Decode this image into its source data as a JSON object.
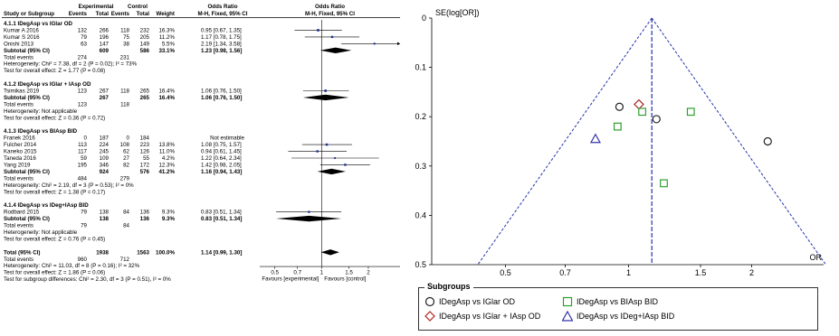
{
  "chart_data": [
    {
      "type": "forest",
      "headers": {
        "study": "Study or Subgroup",
        "exp": "Experimental",
        "ctrl": "Control",
        "events": "Events",
        "total": "Total",
        "weight": "Weight",
        "or_text": "Odds Ratio",
        "or_text_sub": "M-H, Fixed, 95% CI",
        "or_plot": "Odds Ratio",
        "or_plot_sub": "M-H, Fixed, 95% CI"
      },
      "rows": [
        {
          "kind": "group",
          "label": "4.1.1 IDegAsp vs IGlar OD"
        },
        {
          "kind": "study",
          "label": "Kumar A 2016",
          "e_ev": "132",
          "e_tot": "266",
          "c_ev": "118",
          "c_tot": "232",
          "weight": "16.3%",
          "ci": "0.95 [0.67, 1.35]",
          "or": 0.95,
          "lo": 0.67,
          "hi": 1.35,
          "w": 16.3
        },
        {
          "kind": "study",
          "label": "Kumar S 2016",
          "e_ev": "79",
          "e_tot": "196",
          "c_ev": "75",
          "c_tot": "205",
          "weight": "11.2%",
          "ci": "1.17 [0.78, 1.75]",
          "or": 1.17,
          "lo": 0.78,
          "hi": 1.75,
          "w": 11.2
        },
        {
          "kind": "study",
          "label": "Onishi 2013",
          "e_ev": "63",
          "e_tot": "147",
          "c_ev": "38",
          "c_tot": "149",
          "weight": "5.5%",
          "ci": "2.19 [1.34, 3.58]",
          "or": 2.19,
          "lo": 1.34,
          "hi": 3.58,
          "w": 5.5
        },
        {
          "kind": "subtotal",
          "label": "Subtotal (95% CI)",
          "e_tot": "609",
          "c_tot": "586",
          "weight": "33.1%",
          "ci": "1.23 [0.98, 1.56]",
          "or": 1.23,
          "lo": 0.98,
          "hi": 1.56
        },
        {
          "kind": "text",
          "label": "Total events",
          "e_ev": "274",
          "c_ev": "231"
        },
        {
          "kind": "text",
          "label": "Heterogeneity: Chi² = 7.38, df = 2 (P = 0.02); I² = 73%"
        },
        {
          "kind": "text",
          "label": "Test for overall effect: Z = 1.77 (P = 0.08)"
        },
        {
          "kind": "blank"
        },
        {
          "kind": "group",
          "label": "4.1.2 IDegAsp vs IGlar + IAsp OD"
        },
        {
          "kind": "study",
          "label": "Tsimikas 2019",
          "e_ev": "123",
          "e_tot": "267",
          "c_ev": "118",
          "c_tot": "265",
          "weight": "16.4%",
          "ci": "1.06 [0.76, 1.50]",
          "or": 1.06,
          "lo": 0.76,
          "hi": 1.5,
          "w": 16.4
        },
        {
          "kind": "subtotal",
          "label": "Subtotal (95% CI)",
          "e_tot": "267",
          "c_tot": "265",
          "weight": "16.4%",
          "ci": "1.06 [0.76, 1.50]",
          "or": 1.06,
          "lo": 0.76,
          "hi": 1.5
        },
        {
          "kind": "text",
          "label": "Total events",
          "e_ev": "123",
          "c_ev": "118"
        },
        {
          "kind": "text",
          "label": "Heterogeneity: Not applicable"
        },
        {
          "kind": "text",
          "label": "Test for overall effect: Z = 0.36 (P = 0.72)"
        },
        {
          "kind": "blank"
        },
        {
          "kind": "group",
          "label": "4.1.3 IDegAsp vs BIAsp BID"
        },
        {
          "kind": "study",
          "label": "Franek 2016",
          "e_ev": "0",
          "e_tot": "187",
          "c_ev": "0",
          "c_tot": "184",
          "weight": "",
          "ci": "Not estimable"
        },
        {
          "kind": "study",
          "label": "Fulcher 2014",
          "e_ev": "113",
          "e_tot": "224",
          "c_ev": "108",
          "c_tot": "223",
          "weight": "13.8%",
          "ci": "1.08 [0.75, 1.57]",
          "or": 1.08,
          "lo": 0.75,
          "hi": 1.57,
          "w": 13.8
        },
        {
          "kind": "study",
          "label": "Kaneko 2015",
          "e_ev": "117",
          "e_tot": "245",
          "c_ev": "62",
          "c_tot": "126",
          "weight": "11.0%",
          "ci": "0.94 [0.61, 1.45]",
          "or": 0.94,
          "lo": 0.61,
          "hi": 1.45,
          "w": 11.0
        },
        {
          "kind": "study",
          "label": "Taneda 2016",
          "e_ev": "59",
          "e_tot": "109",
          "c_ev": "27",
          "c_tot": "55",
          "weight": "4.2%",
          "ci": "1.22 [0.64, 2.34]",
          "or": 1.22,
          "lo": 0.64,
          "hi": 2.34,
          "w": 4.2
        },
        {
          "kind": "study",
          "label": "Yang 2019",
          "e_ev": "195",
          "e_tot": "346",
          "c_ev": "82",
          "c_tot": "172",
          "weight": "12.3%",
          "ci": "1.42 [0.98, 2.05]",
          "or": 1.42,
          "lo": 0.98,
          "hi": 2.05,
          "w": 12.3
        },
        {
          "kind": "subtotal",
          "label": "Subtotal (95% CI)",
          "e_tot": "924",
          "c_tot": "576",
          "weight": "41.2%",
          "ci": "1.16 [0.94, 1.43]",
          "or": 1.16,
          "lo": 0.94,
          "hi": 1.43
        },
        {
          "kind": "text",
          "label": "Total events",
          "e_ev": "484",
          "c_ev": "279"
        },
        {
          "kind": "text",
          "label": "Heterogeneity: Chi² = 2.19, df = 3 (P = 0.53); I² = 0%"
        },
        {
          "kind": "text",
          "label": "Test for overall effect: Z = 1.38 (P = 0.17)"
        },
        {
          "kind": "blank"
        },
        {
          "kind": "group",
          "label": "4.1.4 IDegAsp vs IDeg+IAsp BID"
        },
        {
          "kind": "study",
          "label": "Rodbard 2015",
          "e_ev": "79",
          "e_tot": "138",
          "c_ev": "84",
          "c_tot": "136",
          "weight": "9.3%",
          "ci": "0.83 [0.51, 1.34]",
          "or": 0.83,
          "lo": 0.51,
          "hi": 1.34,
          "w": 9.3
        },
        {
          "kind": "subtotal",
          "label": "Subtotal (95% CI)",
          "e_tot": "138",
          "c_tot": "136",
          "weight": "9.3%",
          "ci": "0.83 [0.51, 1.34]",
          "or": 0.83,
          "lo": 0.51,
          "hi": 1.34
        },
        {
          "kind": "text",
          "label": "Total events",
          "e_ev": "79",
          "c_ev": "84"
        },
        {
          "kind": "text",
          "label": "Heterogeneity: Not applicable"
        },
        {
          "kind": "text",
          "label": "Test for overall effect: Z = 0.76 (P = 0.45)"
        },
        {
          "kind": "blank"
        },
        {
          "kind": "total",
          "label": "Total (95% CI)",
          "e_tot": "1938",
          "c_tot": "1563",
          "weight": "100.0%",
          "ci": "1.14 [0.99, 1.30]",
          "or": 1.14,
          "lo": 0.99,
          "hi": 1.3
        },
        {
          "kind": "text",
          "label": "Total events",
          "e_ev": "960",
          "c_ev": "712"
        },
        {
          "kind": "text",
          "label": "Heterogeneity: Chi² = 11.03, df = 8 (P = 0.16); I² = 32%"
        },
        {
          "kind": "text",
          "label": "Test for overall effect: Z = 1.86 (P = 0.06)"
        },
        {
          "kind": "text",
          "label": "Test for subgroup differences: Chi² = 2.30, df = 3 (P = 0.51), I² = 0%"
        }
      ],
      "x_scale": "log",
      "xlim": [
        0.4,
        3.2
      ],
      "x_ticks": [
        {
          "v": 0.5,
          "label": "0.5"
        },
        {
          "v": 0.7,
          "label": "0.7"
        },
        {
          "v": 1,
          "label": "1"
        },
        {
          "v": 1.5,
          "label": "1.5"
        },
        {
          "v": 2,
          "label": "2"
        }
      ],
      "favours_left": "Favours [experimental]",
      "favours_right": "Favours [control]"
    },
    {
      "type": "scatter",
      "title": "",
      "ylabel": "SE(log[OR])",
      "xlabel": "OR",
      "x_scale": "log",
      "xlim": [
        0.33,
        3.0
      ],
      "ylim": [
        0,
        0.5
      ],
      "y_reversed": true,
      "y_ticks": [
        {
          "v": 0,
          "label": "0"
        },
        {
          "v": 0.1,
          "label": "0.1"
        },
        {
          "v": 0.2,
          "label": "0.2"
        },
        {
          "v": 0.3,
          "label": "0.3"
        },
        {
          "v": 0.4,
          "label": "0.4"
        },
        {
          "v": 0.5,
          "label": "0.5"
        }
      ],
      "x_ticks": [
        {
          "v": 0.5,
          "label": "0.5"
        },
        {
          "v": 0.7,
          "label": "0.7"
        },
        {
          "v": 1,
          "label": "1"
        },
        {
          "v": 1.5,
          "label": "1.5"
        },
        {
          "v": 2,
          "label": "2"
        }
      ],
      "pooled_or": 1.14,
      "legend_title": "Subgroups",
      "series": [
        {
          "name": "IDegAsp vs IGlar OD",
          "marker": "circle",
          "color": "#222222",
          "points": [
            {
              "or": 0.95,
              "se": 0.18
            },
            {
              "or": 1.17,
              "se": 0.205
            },
            {
              "or": 2.19,
              "se": 0.25
            }
          ]
        },
        {
          "name": "IDegAsp vs IGlar + IAsp OD",
          "marker": "diamond",
          "color": "#b22222",
          "points": [
            {
              "or": 1.06,
              "se": 0.175
            }
          ]
        },
        {
          "name": "IDegAsp vs BIAsp BID",
          "marker": "square",
          "color": "#2ea02e",
          "points": [
            {
              "or": 1.08,
              "se": 0.19
            },
            {
              "or": 0.94,
              "se": 0.22
            },
            {
              "or": 1.22,
              "se": 0.335
            },
            {
              "or": 1.42,
              "se": 0.19
            }
          ]
        },
        {
          "name": "IDegAsp vs IDeg+IAsp BID",
          "marker": "triangle",
          "color": "#3333aa",
          "points": [
            {
              "or": 0.83,
              "se": 0.245
            }
          ]
        }
      ]
    }
  ]
}
